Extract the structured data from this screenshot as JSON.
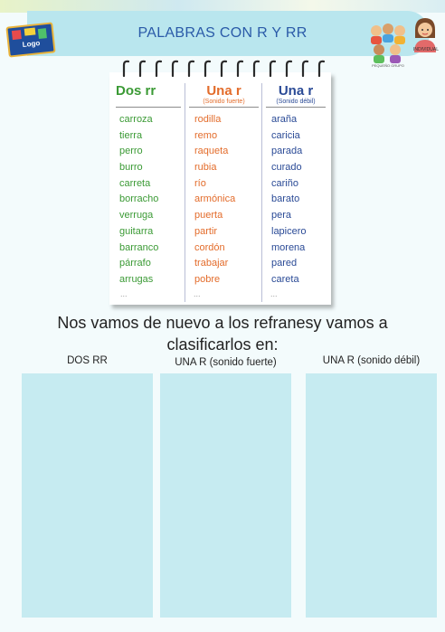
{
  "header": {
    "title": "PALABRAS CON R Y RR",
    "logo_text": "Logo",
    "group_label": "PEQUEÑO GRUPO",
    "teacher_label": "INDIVIDUAL"
  },
  "notebook": {
    "columns": [
      {
        "heading": "Dos  rr",
        "subheading": "",
        "words": [
          "carroza",
          "tierra",
          "perro",
          "burro",
          "carreta",
          "borracho",
          "verruga",
          "guitarra",
          "barranco",
          "párrafo",
          "arrugas"
        ],
        "ellipsis": "..."
      },
      {
        "heading": "Una  r",
        "subheading": "(Sonido  fuerte)",
        "words": [
          "rodilla",
          "remo",
          "raqueta",
          "rubia",
          "río",
          "armónica",
          "puerta",
          "partir",
          "cordón",
          "trabajar",
          "pobre"
        ],
        "ellipsis": "..."
      },
      {
        "heading": "Una  r",
        "subheading": "(Sonido  débil)",
        "words": [
          "araña",
          "caricia",
          "parada",
          "curado",
          "cariño",
          "barato",
          "pera",
          "lapicero",
          "morena",
          "pared",
          "careta"
        ],
        "ellipsis": "..."
      }
    ]
  },
  "instruction": "Nos vamos de nuevo a los refranesy vamos a clasificarlos en:",
  "categories": [
    {
      "label": "DOS RR"
    },
    {
      "label": "UNA R  (sonido fuerte)"
    },
    {
      "label": "UNA R (sonido débil)"
    }
  ]
}
